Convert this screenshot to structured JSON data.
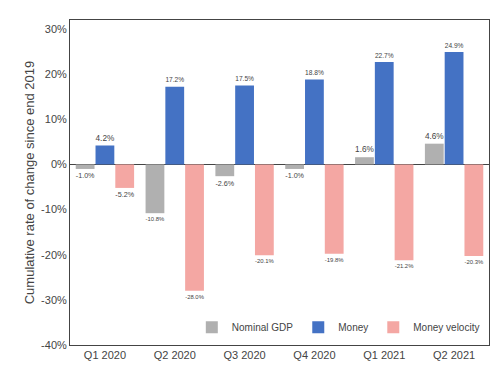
{
  "chart_data": {
    "type": "bar",
    "categories": [
      "Q1 2020",
      "Q2 2020",
      "Q3 2020",
      "Q4 2020",
      "Q1 2021",
      "Q2 2021"
    ],
    "series": [
      {
        "name": "Nominal GDP",
        "color": "#b0b0b0",
        "values": [
          -1.0,
          -10.8,
          -2.6,
          -1.0,
          1.6,
          4.6
        ],
        "value_labels": [
          "-1.0%",
          "-10.8%",
          "-2.6%",
          "-1.0%",
          "1.6%",
          "4.6%"
        ]
      },
      {
        "name": "Money",
        "color": "#4472c4",
        "values": [
          4.2,
          17.2,
          17.5,
          18.8,
          22.7,
          24.9
        ],
        "value_labels": [
          "4.2%",
          "17.2%",
          "17.5%",
          "18.8%",
          "22.7%",
          "24.9%"
        ]
      },
      {
        "name": "Money velocity",
        "color": "#f4a7a3",
        "values": [
          -5.2,
          -28.0,
          -20.1,
          -19.8,
          -21.2,
          -20.3
        ],
        "value_labels": [
          "-5.2%",
          "-28.0%",
          "-20.1%",
          "-19.8%",
          "-21.2%",
          "-20.3%"
        ]
      }
    ],
    "y_label": "Cumulative rate of change since end 2019",
    "ylim": [
      -40,
      32
    ],
    "yticks": [
      {
        "value": -40,
        "label": "-40%"
      },
      {
        "value": -30,
        "label": "-30%"
      },
      {
        "value": -20,
        "label": "-20%"
      },
      {
        "value": -10,
        "label": "-10%"
      },
      {
        "value": 0,
        "label": "0%"
      },
      {
        "value": 10,
        "label": "10%"
      },
      {
        "value": 20,
        "label": "20%"
      },
      {
        "value": 30,
        "label": "30%"
      }
    ],
    "grid": false,
    "legend": "lower right",
    "data_labels": true
  }
}
